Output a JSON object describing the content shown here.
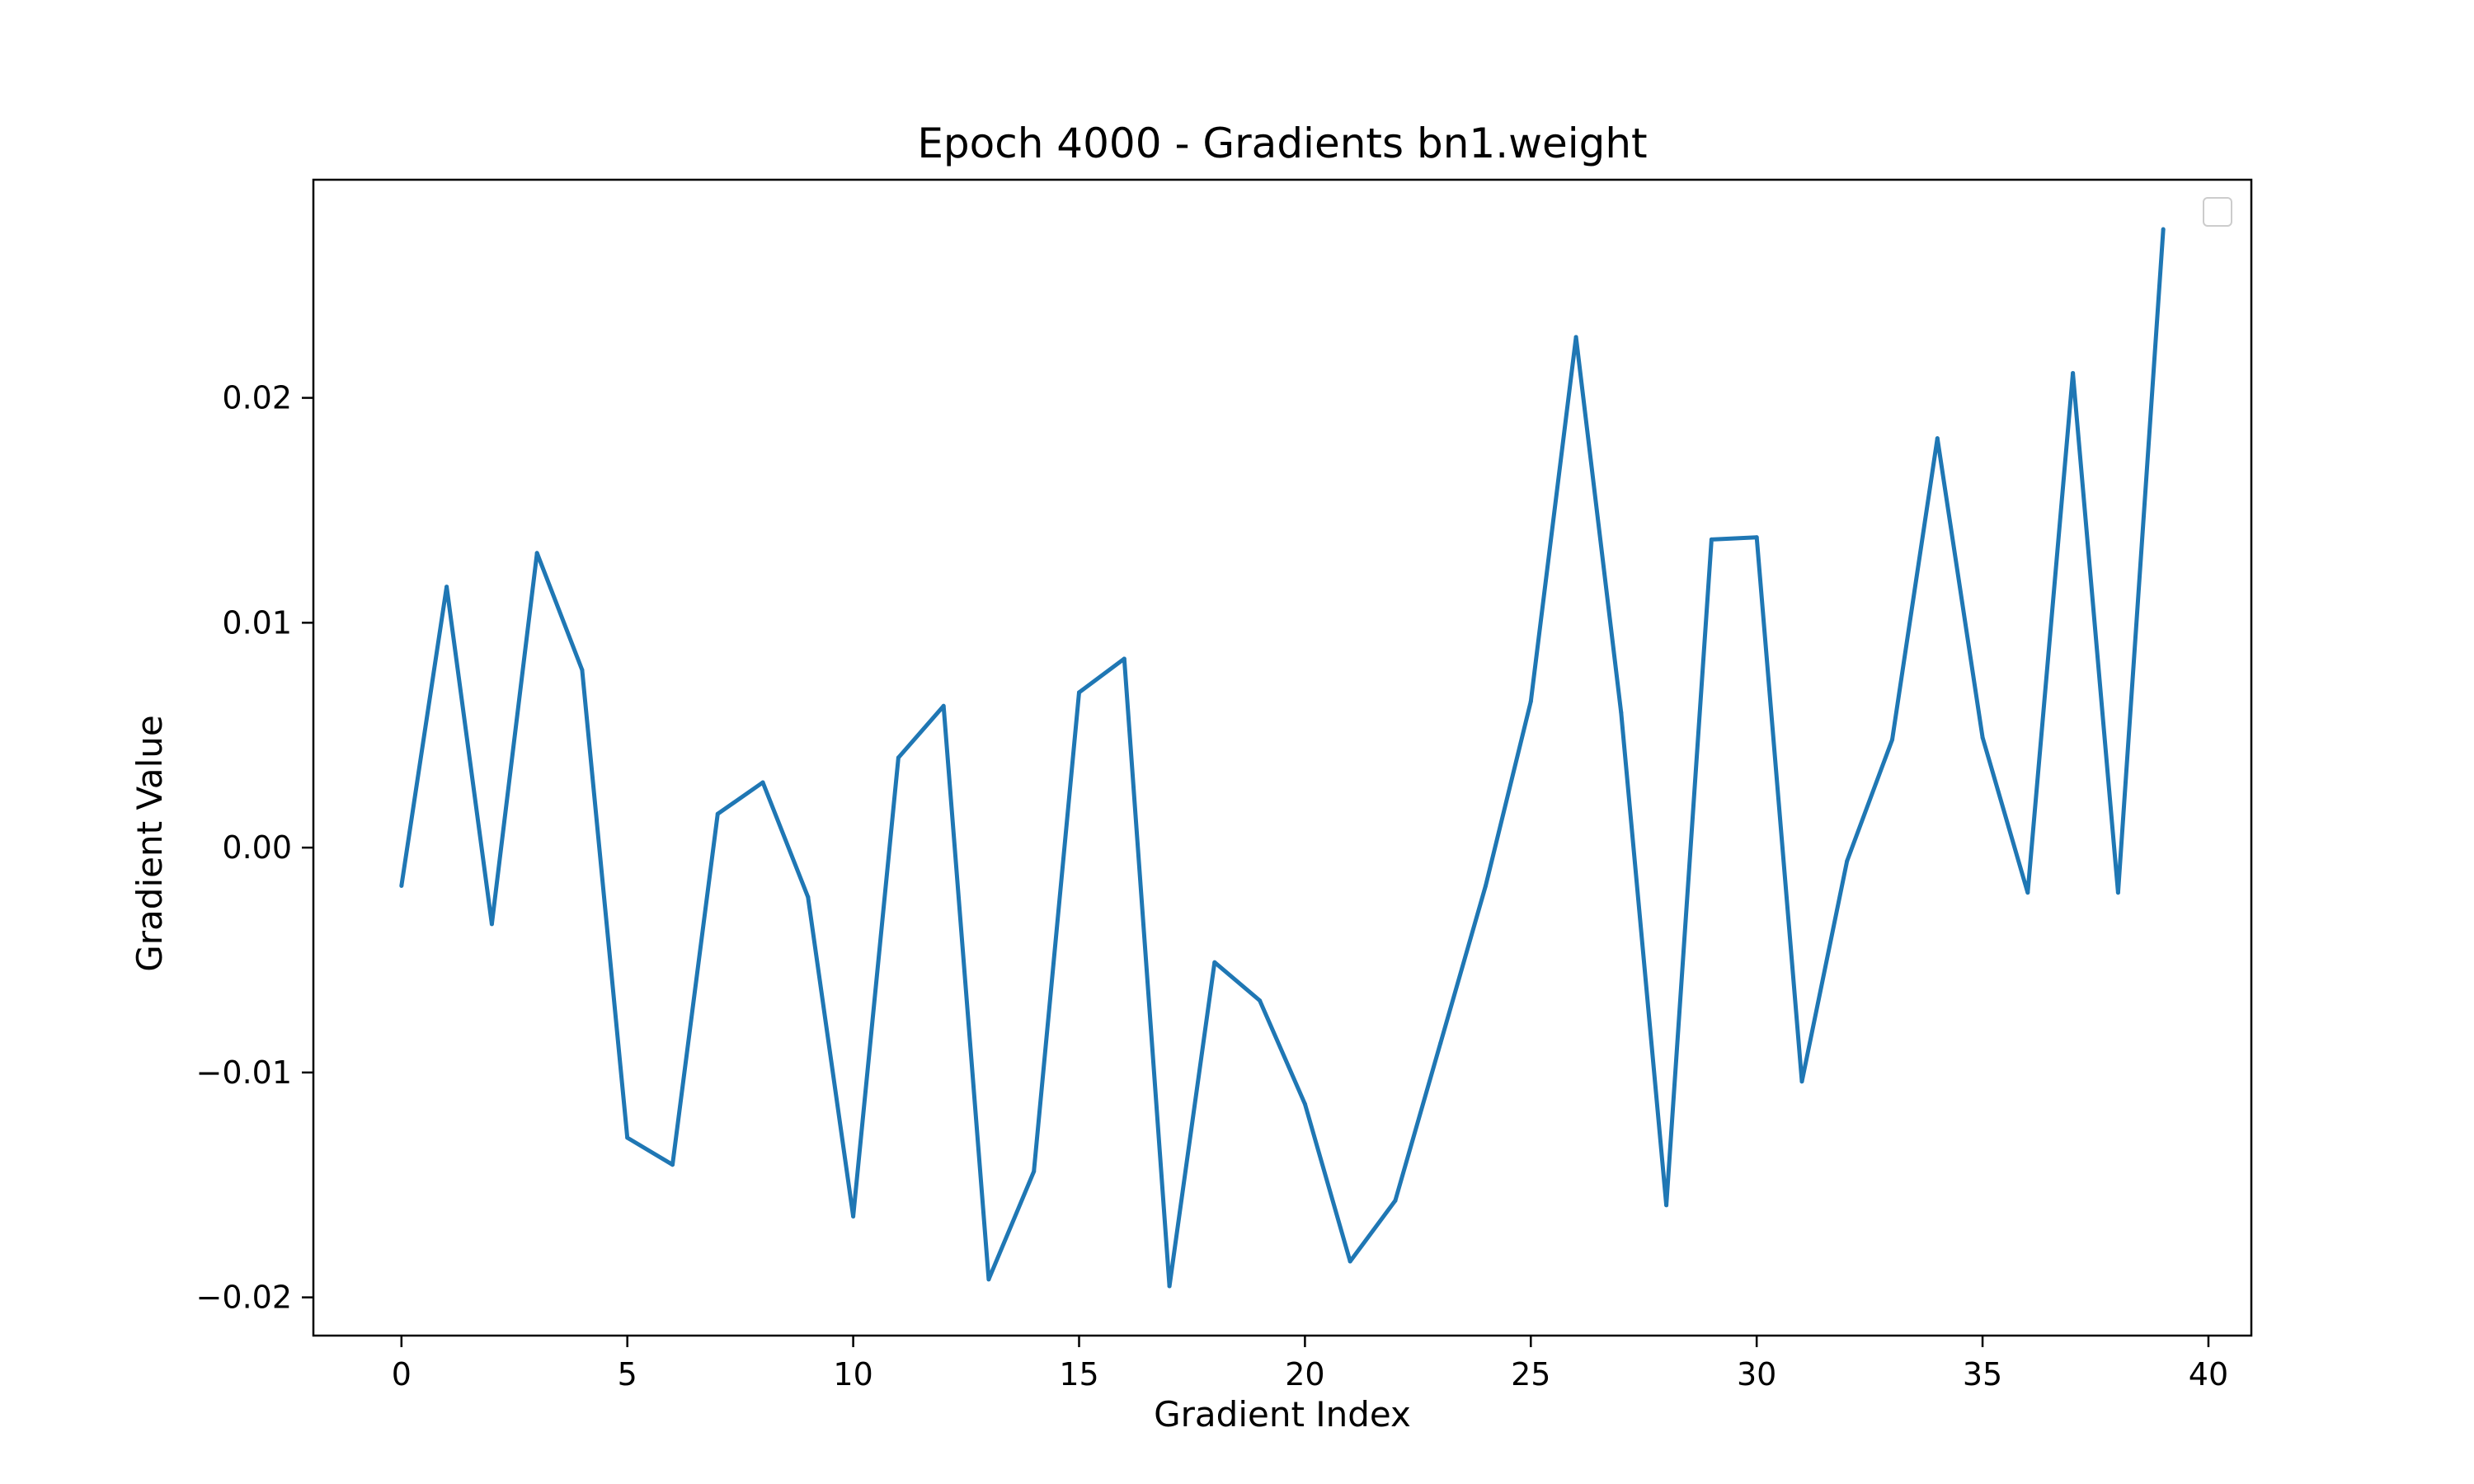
{
  "chart_data": {
    "type": "line",
    "title": "Epoch 4000 - Gradients bn1.weight",
    "xlabel": "Gradient Index",
    "ylabel": "Gradient Value",
    "xlim": [
      -1.95,
      40.95
    ],
    "ylim": [
      -0.0217,
      0.0297
    ],
    "xticks": [
      0,
      5,
      10,
      15,
      20,
      25,
      30,
      35,
      40
    ],
    "xtick_labels": [
      "0",
      "5",
      "10",
      "15",
      "20",
      "25",
      "30",
      "35",
      "40"
    ],
    "yticks": [
      -0.02,
      -0.01,
      0.0,
      0.01,
      0.02
    ],
    "ytick_labels": [
      "−0.02",
      "−0.01",
      "0.00",
      "0.01",
      "0.02"
    ],
    "grid": false,
    "legend": "upper right (empty)",
    "line_color": "#1f77b4",
    "series": [
      {
        "x": [
          0,
          1,
          2,
          3,
          4,
          5,
          6,
          7,
          8,
          9,
          10,
          11,
          12,
          13,
          14,
          15,
          16,
          17,
          18,
          19,
          20,
          21,
          22,
          23,
          24,
          25,
          26,
          27,
          28,
          29,
          30,
          31,
          32,
          33,
          34,
          35,
          36,
          37,
          38,
          39
        ],
        "values": [
          -0.0017,
          0.0116,
          -0.0034,
          0.0131,
          0.0079,
          -0.0129,
          -0.0141,
          0.0015,
          0.0029,
          -0.0022,
          -0.0164,
          0.004,
          0.0063,
          -0.0192,
          -0.0144,
          0.0069,
          0.0084,
          -0.0195,
          -0.0051,
          -0.0068,
          -0.0114,
          -0.0184,
          -0.0157,
          -0.0087,
          -0.0017,
          0.0065,
          0.0227,
          0.006,
          -0.0159,
          0.0137,
          0.0138,
          -0.0104,
          -0.0006,
          0.0048,
          0.0182,
          0.0049,
          -0.002,
          0.0211,
          -0.002,
          0.0275
        ]
      }
    ]
  }
}
